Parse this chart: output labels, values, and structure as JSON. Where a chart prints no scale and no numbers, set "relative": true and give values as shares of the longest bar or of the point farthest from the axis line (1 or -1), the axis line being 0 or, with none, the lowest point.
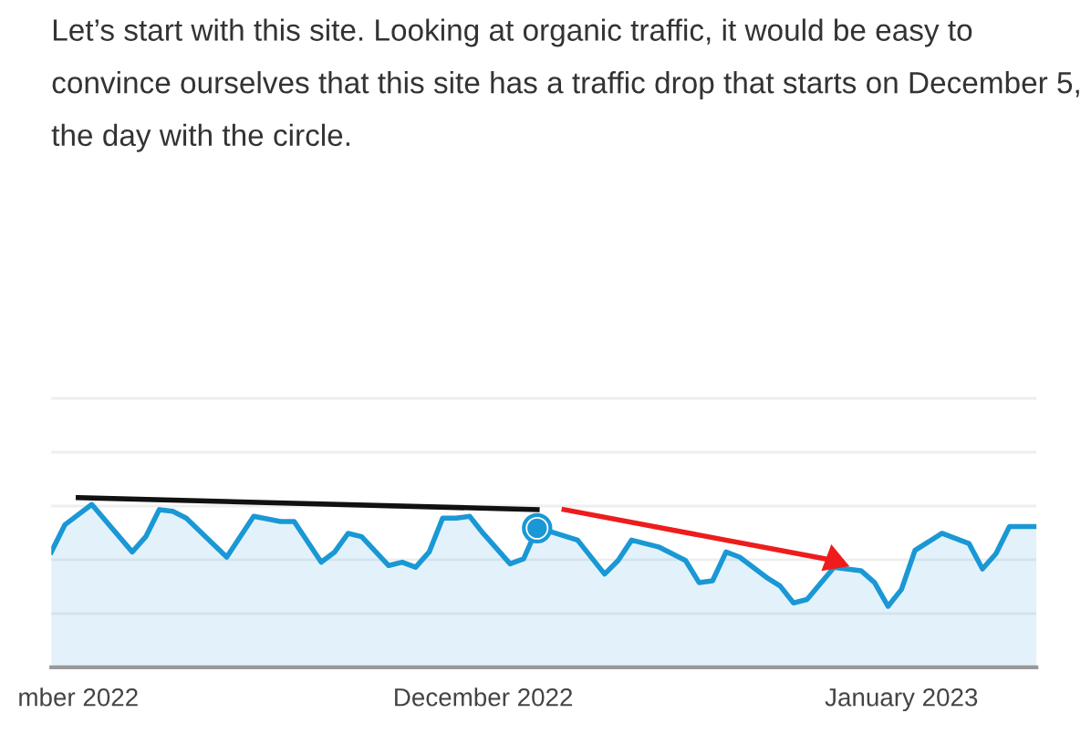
{
  "chart_data": {
    "type": "area",
    "relative": true,
    "title": "Let’s start with this site. Looking at organic traffic, it would be easy to convince ourselves that this site has a traffic drop that starts on December 5, the day with the circle.",
    "xlim": [
      "2022-10-30",
      "2023-01-11"
    ],
    "xticks": [
      {
        "value": "2022-11-01",
        "label": "mber 2022"
      },
      {
        "value": "2022-12-01",
        "label": "December 2022"
      },
      {
        "value": "2023-01-01",
        "label": "January 2023"
      }
    ],
    "grid": "y",
    "series": [
      {
        "color": "#1a98d5",
        "x": [
          "2022-10-30",
          "2022-10-31",
          "2022-11-02",
          "2022-11-05",
          "2022-11-06",
          "2022-11-07",
          "2022-11-08",
          "2022-11-09",
          "2022-11-12",
          "2022-11-14",
          "2022-11-16",
          "2022-11-17",
          "2022-11-19",
          "2022-11-20",
          "2022-11-21",
          "2022-11-22",
          "2022-11-24",
          "2022-11-25",
          "2022-11-26",
          "2022-11-27",
          "2022-11-28",
          "2022-11-29",
          "2022-11-30",
          "2022-12-01",
          "2022-12-03",
          "2022-12-04",
          "2022-12-05",
          "2022-12-06",
          "2022-12-08",
          "2022-12-10",
          "2022-12-11",
          "2022-12-12",
          "2022-12-14",
          "2022-12-16",
          "2022-12-17",
          "2022-12-18",
          "2022-12-19",
          "2022-12-20",
          "2022-12-22",
          "2022-12-23",
          "2022-12-24",
          "2022-12-25",
          "2022-12-27",
          "2022-12-29",
          "2022-12-30",
          "2022-12-31",
          "2023-01-01",
          "2023-01-02",
          "2023-01-04",
          "2023-01-06",
          "2023-01-07",
          "2023-01-08",
          "2023-01-09",
          "2023-01-11"
        ],
        "values": [
          0.68,
          0.84,
          0.96,
          0.68,
          0.77,
          0.93,
          0.92,
          0.88,
          0.65,
          0.89,
          0.86,
          0.86,
          0.62,
          0.68,
          0.79,
          0.77,
          0.6,
          0.62,
          0.59,
          0.68,
          0.88,
          0.88,
          0.89,
          0.79,
          0.61,
          0.64,
          0.82,
          0.8,
          0.75,
          0.55,
          0.63,
          0.75,
          0.71,
          0.63,
          0.5,
          0.51,
          0.68,
          0.65,
          0.53,
          0.48,
          0.38,
          0.4,
          0.59,
          0.57,
          0.5,
          0.36,
          0.46,
          0.69,
          0.79,
          0.73,
          0.58,
          0.67,
          0.83,
          0.83
        ]
      },
      {
        "type": "scatter",
        "color": "#1a98d5",
        "marker": "circle",
        "x": [
          "2022-12-05"
        ],
        "values": [
          0.82
        ]
      },
      {
        "type": "line",
        "color": "#111111",
        "x": [
          "2022-11-01",
          "2022-12-05"
        ],
        "values": [
          1,
          0.93
        ]
      },
      {
        "type": "line",
        "color": "#ee1c1c",
        "marker": "triangle",
        "x": [
          "2022-12-07",
          "2022-12-27"
        ],
        "values": [
          0.93,
          0.63
        ]
      }
    ]
  }
}
